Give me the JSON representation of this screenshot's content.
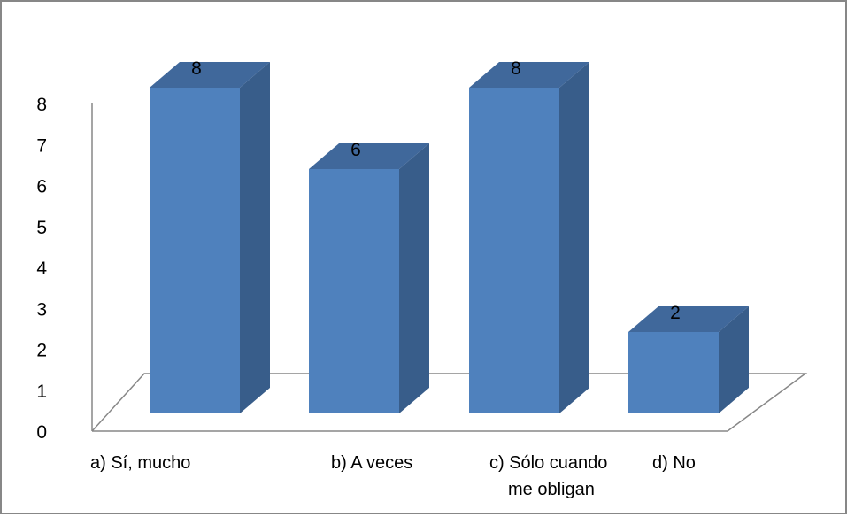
{
  "chart_data": {
    "type": "bar",
    "style": "3d-column",
    "categories": [
      [
        "a) Sí, mucho"
      ],
      [
        "b) A veces"
      ],
      [
        "c) Sólo cuando",
        "me obligan"
      ],
      [
        "d) No"
      ]
    ],
    "values": [
      8,
      6,
      8,
      2
    ],
    "data_labels": [
      "8",
      "6",
      "8",
      "2"
    ],
    "y_ticks": [
      "0",
      "1",
      "2",
      "3",
      "4",
      "5",
      "6",
      "7",
      "8"
    ],
    "ylim": [
      0,
      8
    ],
    "grid": false,
    "legend": "none",
    "colors": {
      "bar_front": "#4F81BD",
      "bar_side": "#385D8A",
      "bar_top": "#40689B",
      "axis": "#878787",
      "frame": "#878787"
    }
  }
}
